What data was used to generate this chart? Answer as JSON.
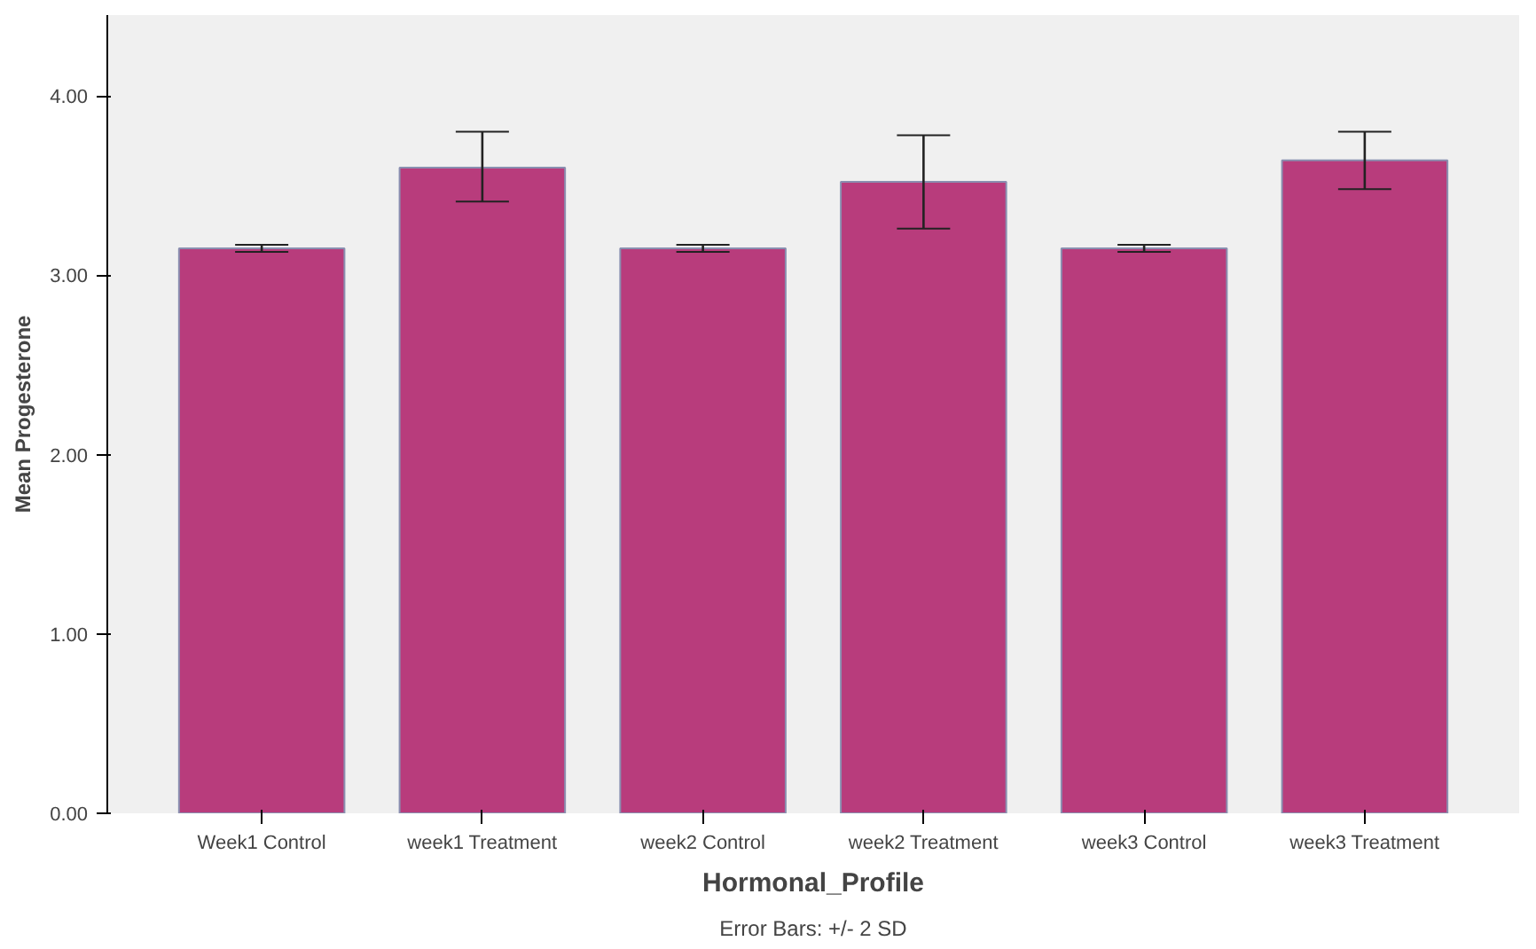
{
  "chart_data": {
    "type": "bar",
    "xlabel": "Hormonal_Profile",
    "ylabel": "Mean Progesterone",
    "categories": [
      "Week1 Control",
      "week1 Treatment",
      "week2 Control",
      "week2 Treatment",
      "week3 Control",
      "week3 Treatment"
    ],
    "values": [
      3.15,
      3.6,
      3.15,
      3.52,
      3.15,
      3.64
    ],
    "errors": [
      [
        3.13,
        3.17
      ],
      [
        3.41,
        3.8
      ],
      [
        3.13,
        3.17
      ],
      [
        3.26,
        3.78
      ],
      [
        3.13,
        3.17
      ],
      [
        3.48,
        3.8
      ]
    ],
    "color": "#b83c7c",
    "ylim": [
      0,
      4.45
    ],
    "yticks": [
      {
        "value": 0,
        "label": "0.00"
      },
      {
        "value": 1,
        "label": "1.00"
      },
      {
        "value": 2,
        "label": "2.00"
      },
      {
        "value": 3,
        "label": "3.00"
      },
      {
        "value": 4,
        "label": "4.00"
      }
    ],
    "grid": false,
    "annotations": [
      "Error Bars: +/- 2 SD"
    ]
  }
}
